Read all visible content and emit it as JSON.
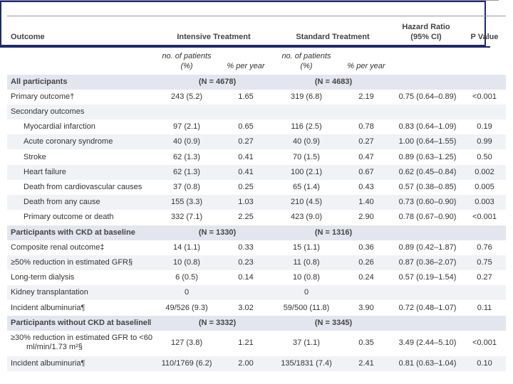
{
  "header": {
    "outcome": "Outcome",
    "intensive": "Intensive Treatment",
    "standard": "Standard Treatment",
    "hazard_ratio": [
      "Hazard Ratio",
      "(95% CI)"
    ],
    "p_value": "P Value"
  },
  "subheader": {
    "intensive_n": [
      "no. of patients",
      "(%)"
    ],
    "intensive_rate": "% per year",
    "standard_n": [
      "no. of patients",
      "(%)"
    ],
    "standard_rate": "% per year"
  },
  "rows": [
    {
      "heading": "All participants",
      "n_intensive": "(N = 4678)",
      "n_standard": "(N = 4683)"
    },
    {
      "label": "Primary outcome†",
      "int_n": "243 (5.2)",
      "int_rate": "1.65",
      "std_n": "319 (6.8)",
      "std_rate": "2.19",
      "hr": "0.75 (0.64–0.89)",
      "p": "<0.001"
    },
    {
      "label": "Secondary outcomes",
      "items": [
        {
          "label": "Myocardial infarction",
          "int_n": "97 (2.1)",
          "int_rate": "0.65",
          "std_n": "116 (2.5)",
          "std_rate": "0.78",
          "hr": "0.83 (0.64–1.09)",
          "p": "0.19"
        },
        {
          "label": "Acute coronary syndrome",
          "int_n": "40 (0.9)",
          "int_rate": "0.27",
          "std_n": "40 (0.9)",
          "std_rate": "0.27",
          "hr": "1.00 (0.64–1.55)",
          "p": "0.99"
        },
        {
          "label": "Stroke",
          "int_n": "62 (1.3)",
          "int_rate": "0.41",
          "std_n": "70 (1.5)",
          "std_rate": "0.47",
          "hr": "0.89 (0.63–1.25)",
          "p": "0.50"
        },
        {
          "label": "Heart failure",
          "int_n": "62 (1.3)",
          "int_rate": "0.41",
          "std_n": "100 (2.1)",
          "std_rate": "0.67",
          "hr": "0.62 (0.45–0.84)",
          "p": "0.002"
        },
        {
          "label": "Death from cardiovascular causes",
          "int_n": "37 (0.8)",
          "int_rate": "0.25",
          "std_n": "65 (1.4)",
          "std_rate": "0.43",
          "hr": "0.57 (0.38–0.85)",
          "p": "0.005"
        },
        {
          "label": "Death from any cause",
          "int_n": "155 (3.3)",
          "int_rate": "1.03",
          "std_n": "210 (4.5)",
          "std_rate": "1.40",
          "hr": "0.73 (0.60–0.90)",
          "p": "0.003"
        },
        {
          "label": "Primary outcome or death",
          "int_n": "332 (7.1)",
          "int_rate": "2.25",
          "std_n": "423 (9.0)",
          "std_rate": "2.90",
          "hr": "0.78 (0.67–0.90)",
          "p": "<0.001"
        }
      ]
    },
    {
      "heading": "Participants with CKD at baseline",
      "n_intensive": "(N = 1330)",
      "n_standard": "(N = 1316)"
    },
    {
      "label": "Composite renal outcome‡",
      "int_n": "14 (1.1)",
      "int_rate": "0.33",
      "std_n": "15 (1.1)",
      "std_rate": "0.36",
      "hr": "0.89 (0.42–1.87)",
      "p": "0.76"
    },
    {
      "label": "≥50% reduction in estimated GFR§",
      "int_n": "10 (0.8)",
      "int_rate": "0.23",
      "std_n": "11 (0.8)",
      "std_rate": "0.26",
      "hr": "0.87 (0.36–2.07)",
      "p": "0.75"
    },
    {
      "label": "Long-term dialysis",
      "int_n": "6 (0.5)",
      "int_rate": "0.14",
      "std_n": "10 (0.8)",
      "std_rate": "0.24",
      "hr": "0.57 (0.19–1.54)",
      "p": "0.27"
    },
    {
      "label": "Kidney transplantation",
      "int_n": "0",
      "std_n": "0"
    },
    {
      "label": "Incident albuminuria¶",
      "int_n": "49/526 (9.3)",
      "int_rate": "3.02",
      "std_n": "59/500 (11.8)",
      "std_rate": "3.90",
      "hr": "0.72 (0.48–1.07)",
      "p": "0.11"
    },
    {
      "heading": "Participants without CKD at baseline‖",
      "n_intensive": "(N = 3332)",
      "n_standard": "(N = 3345)"
    },
    {
      "label": "≥30% reduction in estimated GFR to <60 ml/min/1.73 m²§",
      "int_n": "127 (3.8)",
      "int_rate": "1.21",
      "std_n": "37 (1.1)",
      "std_rate": "0.35",
      "hr": "3.49 (2.44–5.10)",
      "p": "<0.001"
    },
    {
      "label": "Incident albuminuria¶",
      "int_n": "110/1769 (6.2)",
      "int_rate": "2.00",
      "std_n": "135/1831 (7.4)",
      "std_rate": "2.41",
      "hr": "0.81 (0.63–1.04)",
      "p": "0.10"
    }
  ]
}
